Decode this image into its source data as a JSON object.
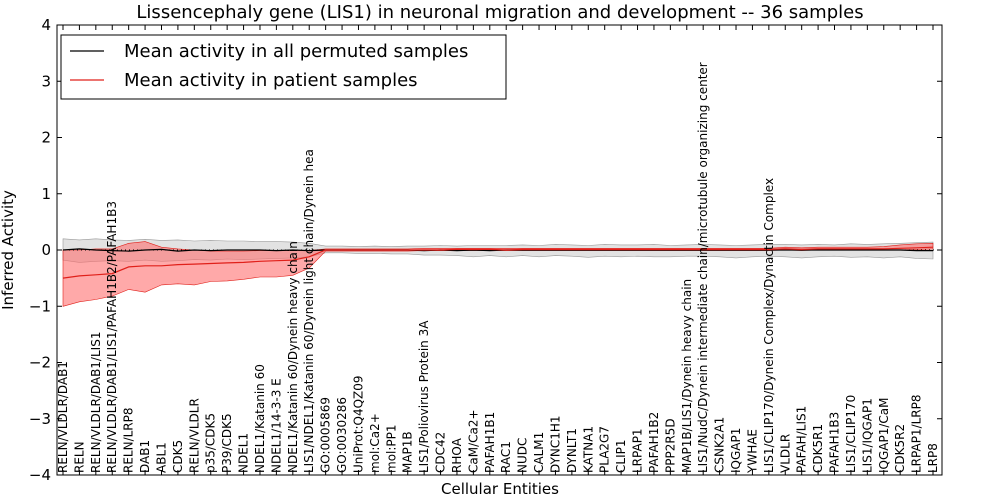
{
  "chart_data": {
    "type": "line",
    "title": "Lissencephaly gene (LIS1) in neuronal migration and development -- 36 samples",
    "xlabel": "Cellular Entities",
    "ylabel": "Inferred Activity",
    "ylim": [
      -4,
      4
    ],
    "yticks": [
      -4,
      -3,
      -2,
      -1,
      0,
      1,
      2,
      3,
      4
    ],
    "ytick_labels": [
      "−4",
      "−3",
      "−2",
      "−1",
      "0",
      "1",
      "2",
      "3",
      "4"
    ],
    "grid": false,
    "legend_position": "top-left",
    "colors": {
      "permuted_line": "#000000",
      "permuted_band": "#bfbfbf",
      "patient_line": "#e0201a",
      "patient_band": "#ff7070"
    },
    "categories": [
      "RELN/VLDLR/DAB1",
      "RELN",
      "RELN/VLDLR/DAB1/LIS1",
      "RELN/VLDLR/DAB1/LIS1/PAFAH1B2/PAFAH1B3",
      "RELN/LRP8",
      "DAB1",
      "ABL1",
      "CDK5",
      "RELN/VLDLR",
      "p35/CDK5",
      "P39/CDK5",
      "NDEL1",
      "NDEL1/Katanin 60",
      "NDEL1/14-3-3 E",
      "NDEL1/Katanin 60/Dynein heavy chain",
      "LIS1/NDEL1/Katanin 60/Dynein light chain/Dynein hea",
      "GO:0005869",
      "GO:0030286",
      "UniProt:Q4QZ09",
      "mol:Ca2+",
      "mol:PP1",
      "MAP1B",
      "LIS1/Poliovirus Protein 3A",
      "CDC42",
      "RHOA",
      "CaM/Ca2+",
      "PAFAH1B1",
      "RAC1",
      "NUDC",
      "CALM1",
      "DYNC1H1",
      "DYNLT1",
      "KATNA1",
      "PLA2G7",
      "CLIP1",
      "LRPAP1",
      "PAFAH1B2",
      "PPP2R5D",
      "MAP1B/LIS1/Dynein heavy chain",
      "LIS1/NudC/Dynein intermediate chain/microtubule organizing center",
      "CSNK2A1",
      "IQGAP1",
      "YWHAE",
      "LIS1/CLIP170/Dynein Complex/Dynactin Complex",
      "VLDLR",
      "PAFAH/LIS1",
      "CDK5R1",
      "PAFAH1B3",
      "LIS1/CLIP170",
      "LIS1/IQGAP1",
      "IQGAP1/CaM",
      "CDK5R2",
      "LRPAP1/LRP8",
      "LRP8"
    ],
    "series": [
      {
        "name": "Mean activity in all permuted samples",
        "values": [
          0.0,
          0.02,
          0.0,
          -0.01,
          -0.02,
          0.0,
          0.01,
          -0.02,
          0.0,
          -0.01,
          0.0,
          0.0,
          0.0,
          -0.01,
          0.0,
          -0.01,
          0.0,
          0.0,
          0.0,
          0.0,
          0.0,
          0.0,
          -0.01,
          0.0,
          -0.01,
          0.0,
          -0.01,
          0.0,
          0.0,
          0.0,
          0.0,
          0.0,
          0.0,
          0.0,
          0.0,
          0.0,
          0.0,
          0.0,
          0.0,
          0.0,
          0.0,
          0.0,
          0.0,
          0.0,
          0.0,
          0.0,
          0.0,
          0.0,
          0.0,
          0.0,
          0.0,
          0.0,
          -0.01,
          -0.01
        ],
        "lower": [
          -0.18,
          -0.22,
          -0.2,
          -0.19,
          -0.2,
          -0.18,
          -0.2,
          -0.19,
          -0.17,
          -0.18,
          -0.16,
          -0.17,
          -0.16,
          -0.15,
          -0.14,
          -0.12,
          -0.05,
          -0.05,
          -0.06,
          -0.06,
          -0.07,
          -0.07,
          -0.09,
          -0.09,
          -0.1,
          -0.12,
          -0.1,
          -0.12,
          -0.1,
          -0.12,
          -0.1,
          -0.11,
          -0.13,
          -0.11,
          -0.12,
          -0.11,
          -0.12,
          -0.12,
          -0.11,
          -0.11,
          -0.12,
          -0.14,
          -0.12,
          -0.11,
          -0.12,
          -0.14,
          -0.12,
          -0.11,
          -0.13,
          -0.12,
          -0.14,
          -0.12,
          -0.15,
          -0.16
        ],
        "upper": [
          0.2,
          0.18,
          0.2,
          0.18,
          0.17,
          0.19,
          0.17,
          0.18,
          0.16,
          0.17,
          0.16,
          0.16,
          0.15,
          0.15,
          0.14,
          0.12,
          0.07,
          0.07,
          0.06,
          0.07,
          0.06,
          0.07,
          0.07,
          0.08,
          0.07,
          0.08,
          0.08,
          0.08,
          0.09,
          0.08,
          0.1,
          0.09,
          0.08,
          0.1,
          0.09,
          0.09,
          0.1,
          0.08,
          0.09,
          0.1,
          0.09,
          0.08,
          0.09,
          0.1,
          0.1,
          0.09,
          0.1,
          0.09,
          0.11,
          0.1,
          0.11,
          0.12,
          0.13,
          0.14
        ]
      },
      {
        "name": "Mean activity in patient samples",
        "values": [
          -0.5,
          -0.46,
          -0.44,
          -0.42,
          -0.3,
          -0.28,
          -0.28,
          -0.26,
          -0.25,
          -0.24,
          -0.23,
          -0.22,
          -0.2,
          -0.19,
          -0.18,
          -0.12,
          0.0,
          0.0,
          0.0,
          0.0,
          0.0,
          0.0,
          0.0,
          0.0,
          0.01,
          0.01,
          0.01,
          0.0,
          0.01,
          0.01,
          0.01,
          0.01,
          0.01,
          0.01,
          0.01,
          0.01,
          0.01,
          0.01,
          0.01,
          0.01,
          0.01,
          0.01,
          0.01,
          0.01,
          0.02,
          0.01,
          0.02,
          0.02,
          0.02,
          0.02,
          0.02,
          0.03,
          0.04,
          0.05
        ],
        "lower": [
          -1.0,
          -0.92,
          -0.88,
          -0.82,
          -0.7,
          -0.75,
          -0.62,
          -0.6,
          -0.62,
          -0.56,
          -0.55,
          -0.52,
          -0.48,
          -0.48,
          -0.45,
          -0.32,
          -0.02,
          -0.02,
          -0.02,
          -0.02,
          -0.02,
          -0.02,
          -0.01,
          -0.01,
          -0.01,
          -0.01,
          -0.01,
          -0.01,
          -0.01,
          -0.01,
          -0.01,
          -0.01,
          -0.01,
          -0.01,
          -0.01,
          -0.01,
          -0.01,
          -0.01,
          -0.01,
          -0.01,
          -0.01,
          -0.01,
          -0.01,
          -0.01,
          0.0,
          -0.01,
          0.0,
          0.0,
          0.0,
          0.0,
          0.0,
          0.0,
          0.01,
          0.02
        ],
        "upper": [
          0.0,
          0.0,
          0.02,
          0.02,
          0.12,
          0.15,
          0.05,
          0.02,
          0.0,
          -0.02,
          -0.02,
          -0.02,
          -0.01,
          -0.01,
          -0.01,
          -0.01,
          0.02,
          0.02,
          0.02,
          0.02,
          0.02,
          0.02,
          0.03,
          0.03,
          0.03,
          0.03,
          0.03,
          0.03,
          0.03,
          0.03,
          0.03,
          0.03,
          0.03,
          0.03,
          0.03,
          0.03,
          0.03,
          0.03,
          0.03,
          0.03,
          0.03,
          0.03,
          0.03,
          0.03,
          0.05,
          0.04,
          0.05,
          0.05,
          0.05,
          0.05,
          0.06,
          0.09,
          0.11,
          0.12
        ]
      }
    ]
  }
}
